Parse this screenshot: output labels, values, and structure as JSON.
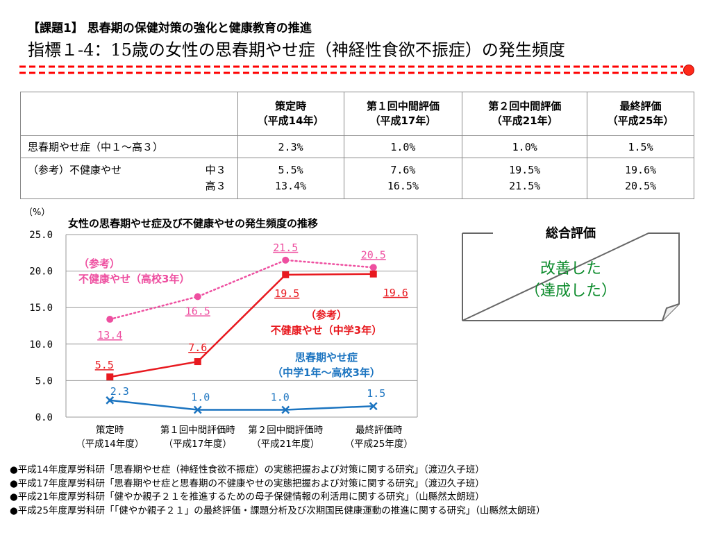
{
  "header": {
    "task": "【課題1】 思春期の保健対策の強化と健康教育の推進",
    "indicator": "指標１-4：15歳の女性の思春期やせ症（神経性食欲不振症）の発生頻度"
  },
  "colors": {
    "accent_red": "#ff0000",
    "pink": "#ee4fa0",
    "red": "#e8191f",
    "blue": "#1b74c0",
    "green": "#0a8a2a"
  },
  "table": {
    "columns": [
      {
        "line1": "策定時",
        "line2": "（平成14年）"
      },
      {
        "line1": "第１回中間評価",
        "line2": "（平成17年）"
      },
      {
        "line1": "第２回中間評価",
        "line2": "（平成21年）"
      },
      {
        "line1": "最終評価",
        "line2": "（平成25年）"
      }
    ],
    "row1": {
      "label": "思春期やせ症（中１～高３）",
      "values": [
        "2.3%",
        "1.0%",
        "1.0%",
        "1.5%"
      ]
    },
    "row2": {
      "label": "（参考）不健康やせ",
      "sub1": "中３",
      "sub2": "高３",
      "values1": [
        "5.5%",
        "7.6%",
        "19.5%",
        "19.6%"
      ],
      "values2": [
        "13.4%",
        "16.5%",
        "21.5%",
        "20.5%"
      ]
    }
  },
  "chart_data": {
    "type": "line",
    "title": "女性の思春期やせ症及び不健康やせの発生頻度の推移",
    "ylabel": "（%）",
    "ylim": [
      0,
      25
    ],
    "yticks": [
      "0.0",
      "5.0",
      "10.0",
      "15.0",
      "20.0",
      "25.0"
    ],
    "categories": [
      {
        "line1": "策定時",
        "line2": "（平成14年度）"
      },
      {
        "line1": "第１回中間評価時",
        "line2": "（平成17年度）"
      },
      {
        "line1": "第２回中間評価時",
        "line2": "（平成21年度）"
      },
      {
        "line1": "最終評価時",
        "line2": "（平成25年度）"
      }
    ],
    "grid": true,
    "series": [
      {
        "name": "（参考）\n不健康やせ（高校3年）",
        "values": [
          13.4,
          16.5,
          21.5,
          20.5
        ],
        "labels": [
          "13.4",
          "16.5",
          "21.5",
          "20.5"
        ],
        "color": "#ee4fa0",
        "style": "dotted",
        "marker": "circle"
      },
      {
        "name": "（参考）\n不健康やせ（中学3年）",
        "values": [
          5.5,
          7.6,
          19.5,
          19.6
        ],
        "labels": [
          "5.5",
          "7.6",
          "19.5",
          "19.6"
        ],
        "color": "#e8191f",
        "style": "solid",
        "marker": "square"
      },
      {
        "name": "思春期やせ症\n（中学1年～高校3年）",
        "values": [
          2.3,
          1.0,
          1.0,
          1.5
        ],
        "labels": [
          "2.3",
          "1.0",
          "1.0",
          "1.5"
        ],
        "color": "#1b74c0",
        "style": "solid",
        "marker": "cross"
      }
    ]
  },
  "summary": {
    "title": "総合評価",
    "result_line1": "改善した",
    "result_line2": "（達成した）"
  },
  "references": [
    "●平成14年度厚労科研「思春期やせ症（神経性食欲不振症）の実態把握および対策に関する研究」（渡辺久子班）",
    "●平成17年度厚労科研「思春期やせ症と思春期の不健康やせの実態把握および対策に関する研究」（渡辺久子班）",
    "●平成21年度厚労科研「健やか親子２１を推進するための母子保健情報の利活用に関する研究」（山縣然太朗班）",
    "●平成25年度厚労科研「「健やか親子２１」の最終評価・課題分析及び次期国民健康運動の推進に関する研究」（山縣然太朗班）"
  ]
}
